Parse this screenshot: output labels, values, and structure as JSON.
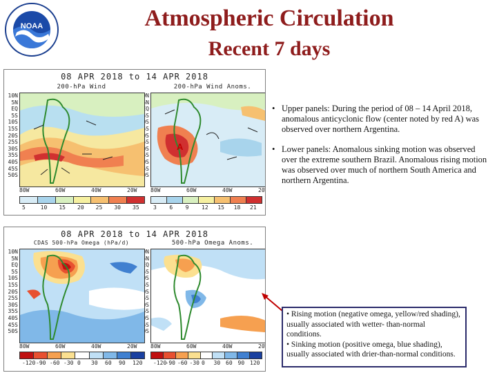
{
  "header": {
    "title": "Atmospheric Circulation",
    "subtitle": "Recent 7 days",
    "logo_text": "NOAA"
  },
  "upper_panel": {
    "date_range": "08 APR 2018  to  14 APR 2018",
    "left_map": {
      "title": "200-hPa Wind",
      "colorbar_ticks": [
        "5",
        "10",
        "15",
        "20",
        "25",
        "30",
        "35"
      ]
    },
    "right_map": {
      "title": "200-hPa Wind Anoms.",
      "colorbar_ticks": [
        "3",
        "6",
        "9",
        "12",
        "15",
        "18",
        "21"
      ],
      "markers": [
        "A"
      ]
    }
  },
  "lower_panel": {
    "date_range": "08 APR 2018  to  14 APR 2018",
    "left_map": {
      "title": "CDAS 500-hPa Omega (hPa/d)",
      "colorbar_ticks": [
        "-120",
        "-90",
        "-60",
        "-30",
        "0",
        "30",
        "60",
        "90",
        "120"
      ]
    },
    "right_map": {
      "title": "500-hPa Omega Anoms.",
      "colorbar_ticks": [
        "-120",
        "-90",
        "-60",
        "-30",
        "0",
        "30",
        "60",
        "90",
        "120"
      ]
    }
  },
  "axes": {
    "latitudes": [
      "10N",
      "5N",
      "EQ",
      "5S",
      "10S",
      "15S",
      "20S",
      "25S",
      "30S",
      "35S",
      "40S",
      "45S",
      "50S"
    ],
    "longitudes": [
      "80W",
      "60W",
      "40W",
      "20W"
    ]
  },
  "bullets": [
    "Upper panels: During the period of 08 – 14 April 2018, anomalous anticyclonic flow (center noted by red A) was observed over northern Argentina.",
    "Lower panels: Anomalous sinking motion was observed over the extreme southern Brazil. Anomalous rising motion was observed over much of northern South America and northern Argentina."
  ],
  "note": {
    "line1": "• Rising motion (negative omega, yellow/red shading), usually associated with wetter- than-normal conditions.",
    "line2": "• Sinking motion (positive omega, blue shading), usually associated with drier-than-normal conditions."
  },
  "colors": {
    "title": "#8e1c1c",
    "wind_scale": [
      "#d8ecf6",
      "#a8d4ec",
      "#d8f0c0",
      "#f6f0a0",
      "#f6c070",
      "#f08050",
      "#d03030"
    ],
    "anom_scale": [
      "#d8ecf6",
      "#a8d4ec",
      "#d8f0c0",
      "#f6f0a0",
      "#f6c070",
      "#f08050",
      "#d03030"
    ],
    "omega_scale": [
      "#c01010",
      "#e85030",
      "#f6a050",
      "#fbe090",
      "#ffffff",
      "#c0e0f6",
      "#80b8e8",
      "#4080d0",
      "#1a40a0"
    ]
  }
}
